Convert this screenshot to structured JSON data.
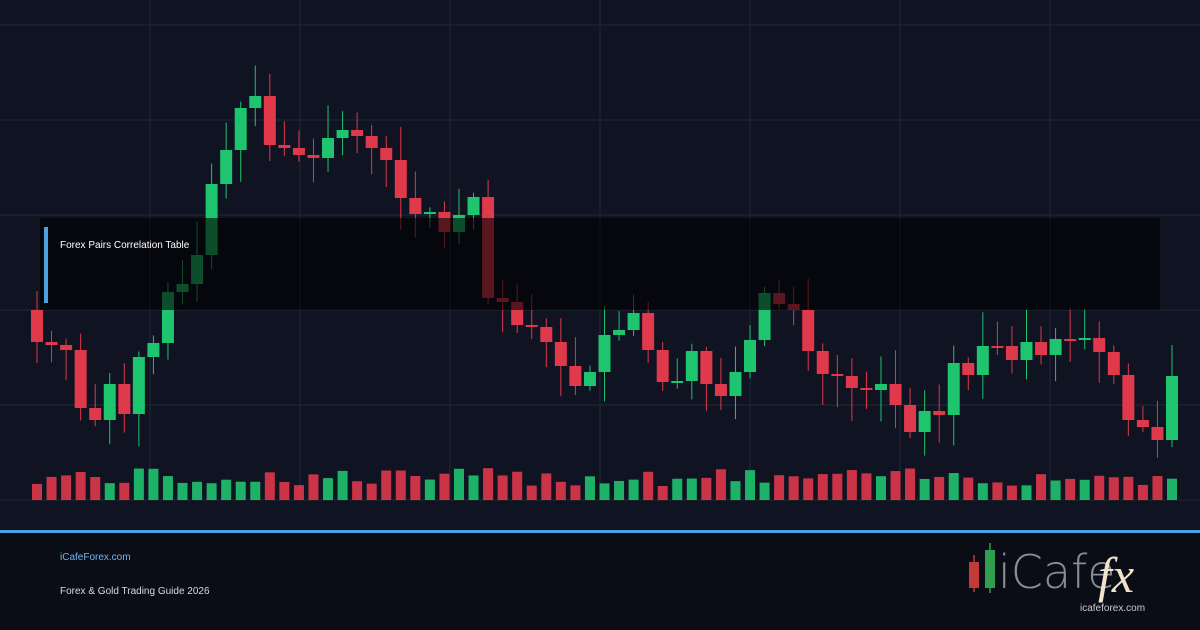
{
  "panel": {
    "title": "Forex Pairs Correlation Table"
  },
  "footer": {
    "site": "iCafeForex.com",
    "subtitle": "Forex & Gold Trading Guide 2026"
  },
  "logo": {
    "name": "iCafe",
    "accent": "fx",
    "url": "icafeforex.com"
  }
}
